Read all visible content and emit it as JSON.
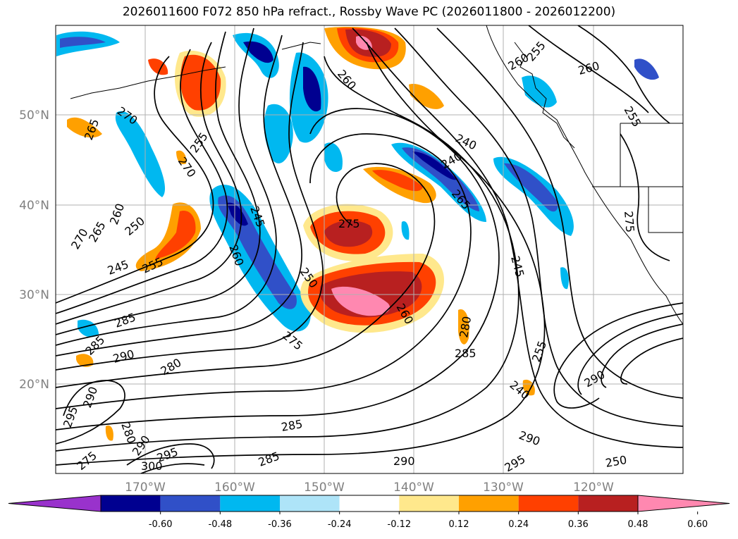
{
  "title": "2026011600 F072 850 hPa refract., Rossby Wave PC (2026011800 - 2026012200)",
  "lat_labels": [
    "50°N",
    "40°N",
    "30°N",
    "20°N"
  ],
  "lon_labels": [
    "170°W",
    "160°W",
    "150°W",
    "140°W",
    "130°W",
    "120°W"
  ],
  "contour_labels": [
    "270",
    "265",
    "255",
    "270",
    "260",
    "250",
    "265",
    "270",
    "245",
    "255",
    "285",
    "285",
    "290",
    "280",
    "295",
    "290",
    "280",
    "290",
    "295",
    "300",
    "275",
    "245",
    "260",
    "275",
    "250",
    "260",
    "275",
    "285",
    "285",
    "260",
    "240",
    "240",
    "265",
    "245",
    "280",
    "285",
    "240",
    "255",
    "290",
    "290",
    "290",
    "295",
    "250",
    "260",
    "255",
    "260",
    "255",
    "275"
  ],
  "colorbar": {
    "tick_labels": [
      "-0.60",
      "-0.48",
      "-0.36",
      "-0.24",
      "-0.12",
      "0.12",
      "0.24",
      "0.36",
      "0.48",
      "0.60"
    ],
    "colors": [
      "#9932cc",
      "#000090",
      "#3050c8",
      "#00b8f0",
      "#aee4f8",
      "#ffffff",
      "#ffe88c",
      "#ffa000",
      "#ff4000",
      "#b82020",
      "#ff88b0"
    ]
  }
}
